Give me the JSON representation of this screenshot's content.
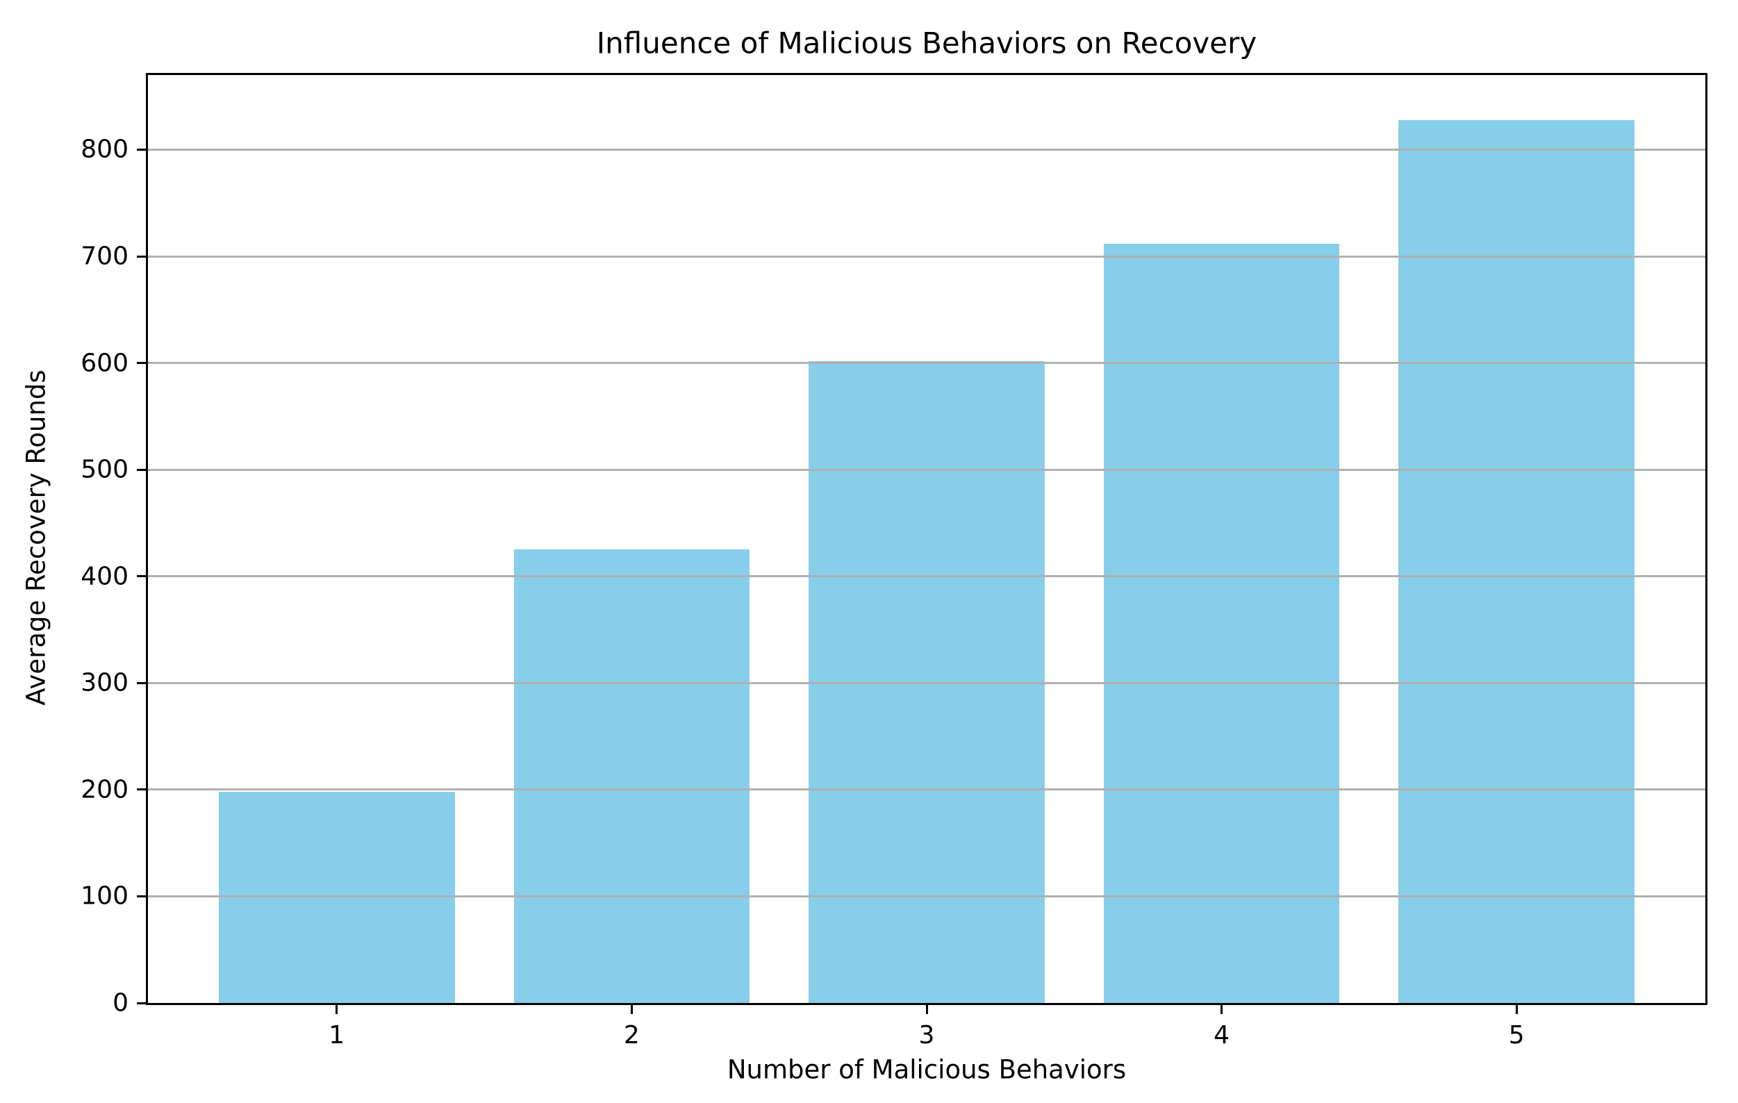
{
  "chart_data": {
    "type": "bar",
    "title": "Influence of Malicious Behaviors on Recovery",
    "xlabel": "Number of Malicious Behaviors",
    "ylabel": "Average Recovery Rounds",
    "categories": [
      "1",
      "2",
      "3",
      "4",
      "5"
    ],
    "values": [
      198,
      425,
      602,
      712,
      828
    ],
    "yticks": [
      0,
      100,
      200,
      300,
      400,
      500,
      600,
      700,
      800
    ],
    "ylim": [
      0,
      870
    ],
    "bar_width_fraction": 0.8,
    "grid": true,
    "grid_axis": "y",
    "grid_over_bars": true,
    "legend": false,
    "colors": {
      "bar": "#87CEEB",
      "grid": "#b0b0b0",
      "spine": "#000000",
      "text": "#000000",
      "background": "#ffffff"
    }
  }
}
